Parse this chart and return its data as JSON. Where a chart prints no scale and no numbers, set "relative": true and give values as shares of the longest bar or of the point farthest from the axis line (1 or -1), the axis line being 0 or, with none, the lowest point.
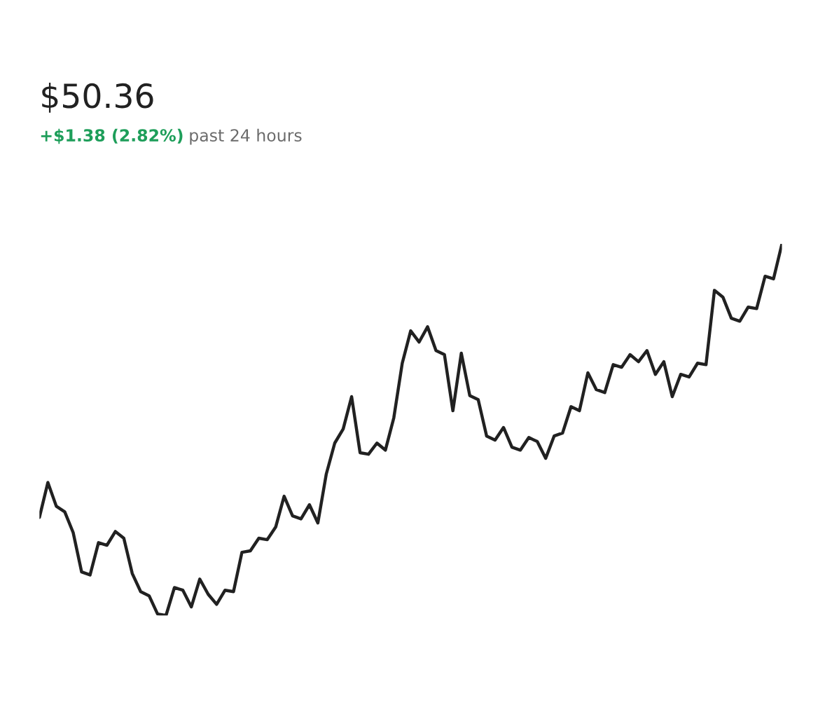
{
  "chart_data": {
    "type": "line",
    "relative": true,
    "subtitle": "$50.36",
    "annotations": [
      "+$1.38 (2.82%)",
      "past 24 hours"
    ],
    "categories": [
      null,
      null,
      null,
      null,
      null,
      null,
      null,
      null,
      null,
      null,
      null,
      null,
      null,
      null,
      null,
      null,
      null,
      null,
      null,
      null,
      null,
      null,
      null,
      null,
      null,
      null,
      null,
      null,
      null,
      null,
      null,
      null,
      null,
      null,
      null,
      null,
      null,
      null,
      null,
      null,
      null,
      null,
      null,
      null,
      null,
      null,
      null,
      null,
      null,
      null,
      null,
      null,
      null,
      null,
      null,
      null,
      null,
      null,
      null,
      null,
      null,
      null,
      null,
      null,
      null,
      null,
      null,
      null,
      null,
      null,
      null,
      null,
      null,
      null,
      null,
      null,
      null,
      null,
      null,
      null,
      null,
      null,
      null,
      null,
      null,
      null,
      null,
      null,
      null
    ],
    "series": [
      {
        "color": "#212121",
        "values": [
          0.264,
          0.358,
          0.294,
          0.279,
          0.223,
          0.117,
          0.109,
          0.196,
          0.189,
          0.226,
          0.208,
          0.113,
          0.064,
          0.053,
          0.004,
          0,
          0.075,
          0.068,
          0.023,
          0.098,
          0.057,
          0.03,
          0.068,
          0.064,
          0.17,
          0.174,
          0.208,
          0.204,
          0.238,
          0.321,
          0.268,
          0.26,
          0.298,
          0.249,
          0.381,
          0.464,
          0.502,
          0.589,
          0.438,
          0.434,
          0.464,
          0.445,
          0.532,
          0.679,
          0.766,
          0.736,
          0.777,
          0.713,
          0.702,
          0.551,
          0.706,
          0.592,
          0.581,
          0.483,
          0.472,
          0.506,
          0.453,
          0.445,
          0.479,
          0.468,
          0.423,
          0.483,
          0.491,
          0.562,
          0.551,
          0.653,
          0.608,
          0.6,
          0.675,
          0.668,
          0.702,
          0.683,
          0.713,
          0.649,
          0.683,
          0.589,
          0.649,
          0.642,
          0.679,
          0.675,
          0.875,
          0.857,
          0.8,
          0.792,
          0.83,
          0.826,
          0.913,
          0.906,
          1
        ]
      }
    ],
    "legend": false
  }
}
